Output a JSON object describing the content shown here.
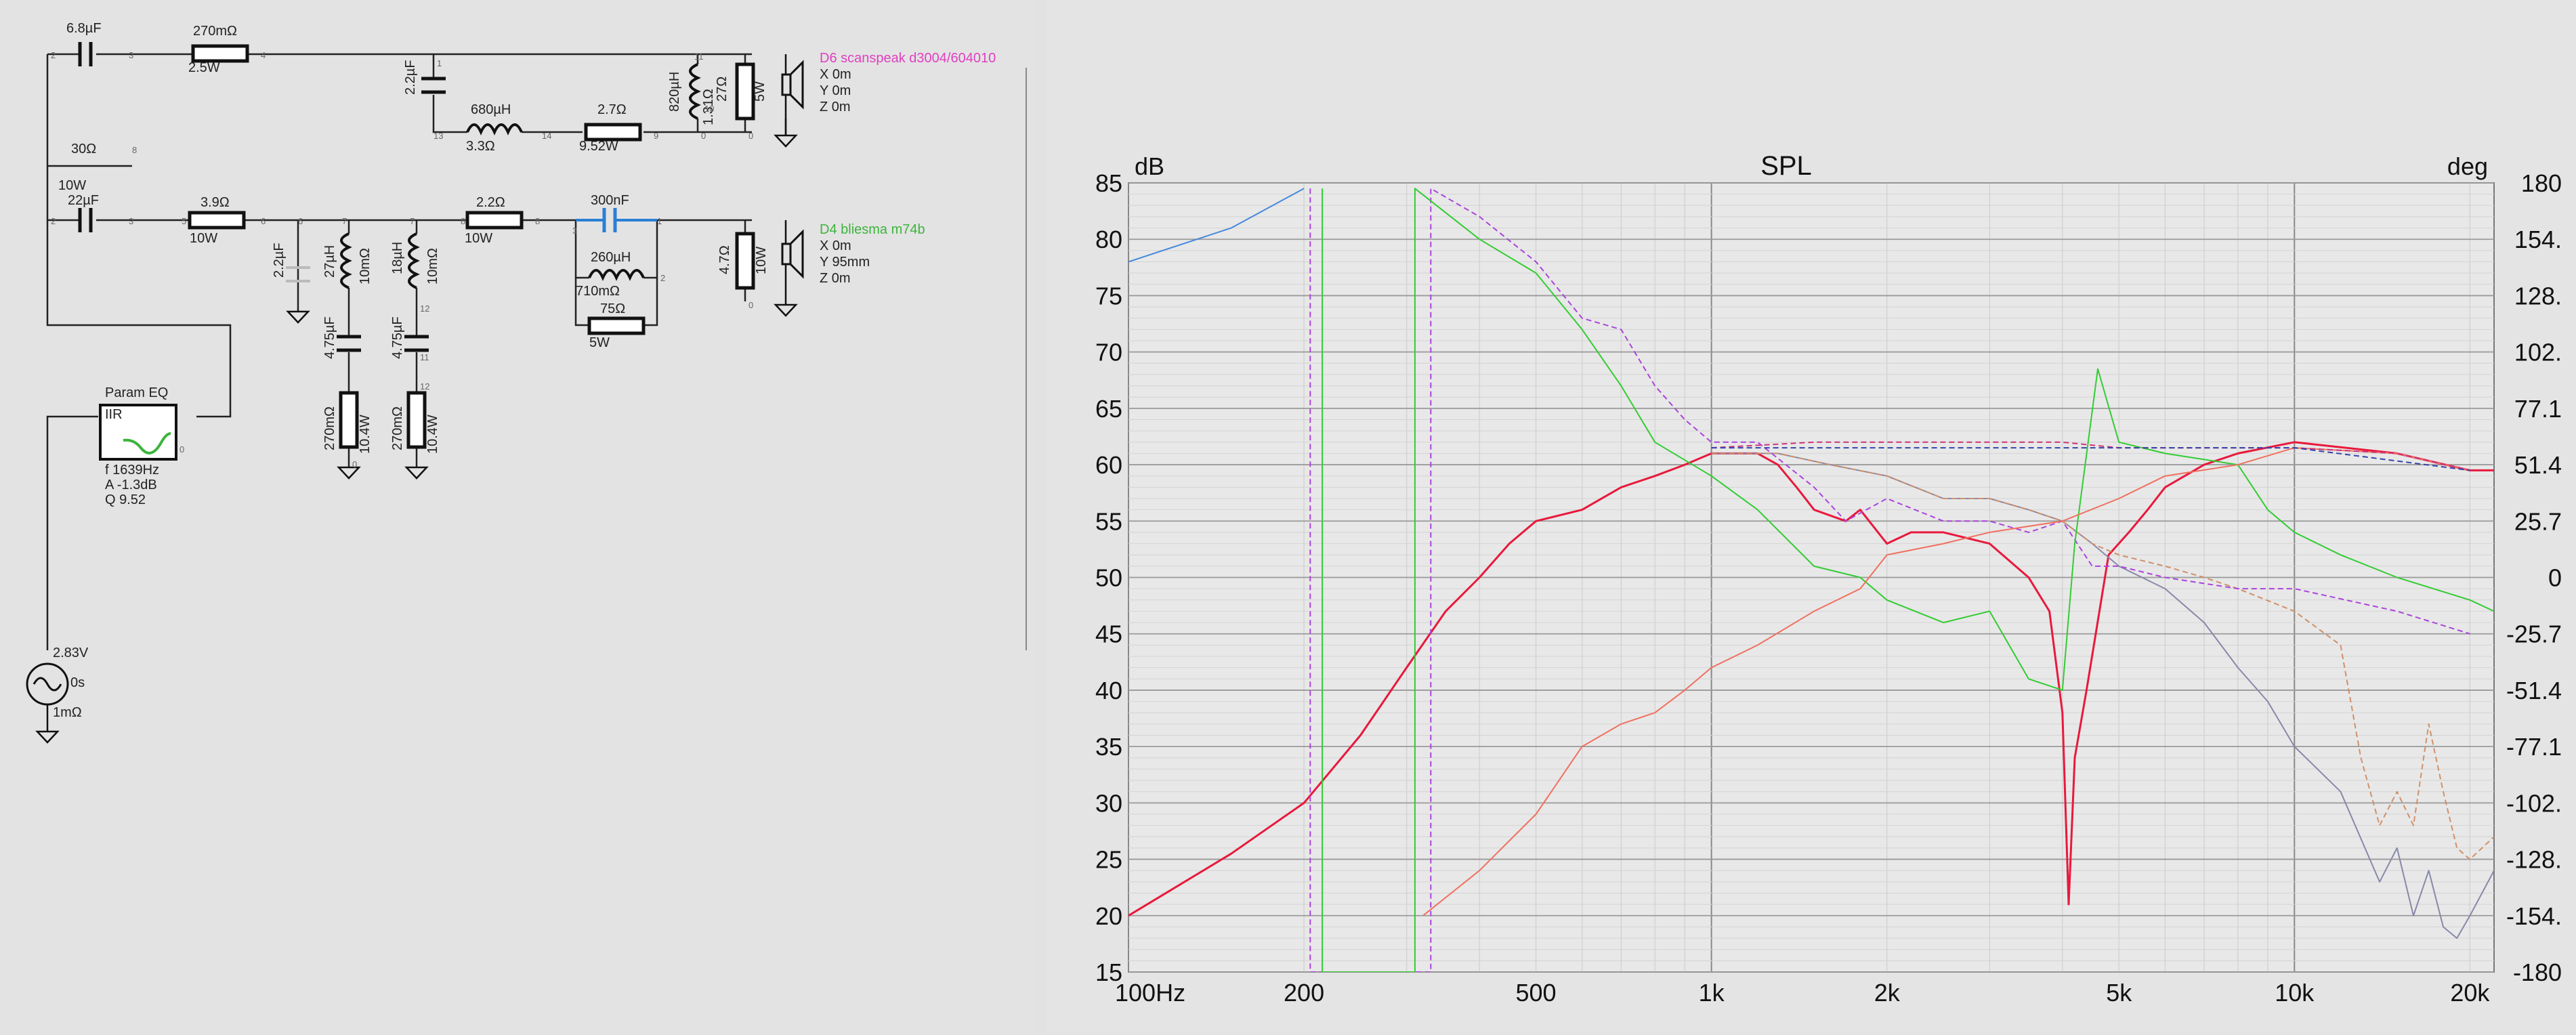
{
  "schematic": {
    "tweeter_label": "D6 scanspeak d3004/604010",
    "tweeter_pos": [
      "X 0m",
      "Y 0m",
      "Z 0m"
    ],
    "woofer_label": "D4 bliesma m74b",
    "woofer_pos": [
      "X 0m",
      "Y 95mm",
      "Z 0m"
    ],
    "colors": {
      "tweeter": "#e040c0",
      "woofer": "#3cb43c",
      "selected": "#2a7fd4"
    },
    "labels": [
      "6.8µF",
      "270mΩ",
      "2.5W",
      "2.2µF",
      "680µH",
      "3.3Ω",
      "2.7Ω",
      "9.52W",
      "820µH",
      "1.31Ω",
      "27Ω",
      "5W",
      "30Ω",
      "10W",
      "22µF",
      "3.9Ω",
      "10W",
      "2.2µF",
      "27µH",
      "10mΩ",
      "18µH",
      "10mΩ",
      "2.2Ω",
      "10W",
      "300nF",
      "260µH",
      "710mΩ",
      "75Ω",
      "5W",
      "4.7Ω",
      "10W",
      "4.75µF",
      "4.75µF",
      "270mΩ",
      "10.4W",
      "270mΩ",
      "10.4W"
    ],
    "peq": {
      "title": "Param EQ",
      "type": "IIR",
      "f": "f   1639Hz",
      "a": "A  -1.3dB",
      "q": "Q  9.52"
    },
    "source": {
      "voltage": "2.83V",
      "delay": "0s",
      "impedance": "1mΩ"
    },
    "pins": [
      "2",
      "3",
      "4",
      "1",
      "13",
      "14",
      "9",
      "0",
      "11",
      "10",
      "0",
      "2",
      "3",
      "5",
      "6",
      "6",
      "7",
      "7",
      "8",
      "8",
      "1",
      "3",
      "2",
      "0",
      "12",
      "11",
      "12",
      "0",
      "8",
      "0"
    ]
  },
  "chart_data": {
    "type": "line",
    "title": "SPL",
    "ylabel_left": "dB",
    "ylabel_right": "deg",
    "x_scale": "log",
    "xlim": [
      100,
      22000
    ],
    "ylim": [
      15,
      85
    ],
    "y2lim": [
      -180,
      180
    ],
    "grid": true,
    "x_ticks": [
      100,
      200,
      500,
      1000,
      2000,
      5000,
      10000,
      20000
    ],
    "x_tick_labels": [
      "100Hz",
      "200",
      "500",
      "1k",
      "2k",
      "5k",
      "10k",
      "20k"
    ],
    "y_ticks": [
      85,
      80,
      75,
      70,
      65,
      60,
      55,
      50,
      45,
      40,
      35,
      30,
      25,
      20,
      15
    ],
    "y2_tick_labels": [
      "180",
      "154.",
      "128.",
      "102.",
      "77.1",
      "51.4",
      "25.7",
      "0",
      "-25.7",
      "-51.4",
      "-77.1",
      "-102.",
      "-128.",
      "-154.",
      "-180"
    ],
    "series": [
      {
        "color": "#e8193c",
        "width": 3,
        "points": [
          [
            100,
            20
          ],
          [
            150,
            25.5
          ],
          [
            200,
            30
          ],
          [
            250,
            36
          ],
          [
            300,
            42
          ],
          [
            350,
            47
          ],
          [
            400,
            50
          ],
          [
            450,
            53
          ],
          [
            500,
            55
          ],
          [
            600,
            56
          ],
          [
            700,
            58
          ],
          [
            800,
            59
          ],
          [
            900,
            60
          ],
          [
            1000,
            61
          ],
          [
            1200,
            61
          ],
          [
            1300,
            60
          ],
          [
            1400,
            58
          ],
          [
            1500,
            56
          ],
          [
            1700,
            55
          ],
          [
            1800,
            56
          ],
          [
            2000,
            53
          ],
          [
            2200,
            54
          ],
          [
            2500,
            54
          ],
          [
            3000,
            53
          ],
          [
            3500,
            50
          ],
          [
            3800,
            47
          ],
          [
            4000,
            38
          ],
          [
            4100,
            21
          ],
          [
            4200,
            34
          ],
          [
            4400,
            40
          ],
          [
            4800,
            52
          ],
          [
            5200,
            54
          ],
          [
            5600,
            56
          ],
          [
            6000,
            58
          ],
          [
            7000,
            60
          ],
          [
            8000,
            61
          ],
          [
            10000,
            62
          ],
          [
            15000,
            61
          ],
          [
            20000,
            59.5
          ],
          [
            22000,
            59.5
          ]
        ]
      },
      {
        "color": "#8888aa",
        "width": 2,
        "points": [
          [
            1000,
            61
          ],
          [
            1300,
            61
          ],
          [
            1600,
            60
          ],
          [
            2000,
            59
          ],
          [
            2500,
            57
          ],
          [
            3000,
            57
          ],
          [
            3500,
            56
          ],
          [
            4000,
            55
          ],
          [
            4500,
            53
          ],
          [
            5000,
            51
          ],
          [
            6000,
            49
          ],
          [
            7000,
            46
          ],
          [
            8000,
            42
          ],
          [
            9000,
            39
          ],
          [
            10000,
            35
          ],
          [
            12000,
            31
          ],
          [
            14000,
            23
          ],
          [
            15000,
            26
          ],
          [
            16000,
            20
          ],
          [
            17000,
            24
          ],
          [
            18000,
            19
          ],
          [
            19000,
            18
          ],
          [
            20000,
            20
          ],
          [
            22000,
            24
          ]
        ]
      },
      {
        "color": "#d0906a",
        "width": 2,
        "dashed": true,
        "points": [
          [
            1000,
            61
          ],
          [
            1300,
            61
          ],
          [
            1600,
            60
          ],
          [
            2000,
            59
          ],
          [
            2500,
            57
          ],
          [
            3000,
            57
          ],
          [
            3500,
            56
          ],
          [
            4000,
            55
          ],
          [
            4500,
            53
          ],
          [
            5000,
            52
          ],
          [
            6000,
            51
          ],
          [
            7000,
            50
          ],
          [
            8000,
            49
          ],
          [
            10000,
            47
          ],
          [
            12000,
            44
          ],
          [
            13000,
            34
          ],
          [
            14000,
            28
          ],
          [
            15000,
            31
          ],
          [
            16000,
            28
          ],
          [
            17000,
            37
          ],
          [
            18000,
            31
          ],
          [
            19000,
            26
          ],
          [
            20000,
            25
          ],
          [
            22000,
            27
          ]
        ]
      },
      {
        "color": "#aa44dd",
        "width": 2,
        "dashed": true,
        "points": [
          [
            205,
            84.5
          ],
          [
            205,
            15
          ],
          [
            330,
            15
          ],
          [
            330,
            84.5
          ],
          [
            400,
            82
          ],
          [
            500,
            78
          ],
          [
            600,
            73
          ],
          [
            700,
            72
          ],
          [
            800,
            67
          ],
          [
            900,
            64
          ],
          [
            1000,
            62
          ],
          [
            1200,
            62
          ],
          [
            1500,
            58
          ],
          [
            1700,
            55
          ],
          [
            2000,
            57
          ],
          [
            2500,
            55
          ],
          [
            3000,
            55
          ],
          [
            3500,
            54
          ],
          [
            4000,
            55
          ],
          [
            4500,
            51
          ],
          [
            5000,
            51
          ],
          [
            6000,
            50
          ],
          [
            8000,
            49
          ],
          [
            10000,
            49
          ],
          [
            15000,
            47
          ],
          [
            20000,
            45
          ]
        ]
      },
      {
        "color": "#33cc33",
        "width": 2,
        "points": [
          [
            215,
            84.5
          ],
          [
            215,
            15
          ],
          [
            310,
            15
          ],
          [
            310,
            84.5
          ],
          [
            400,
            80
          ],
          [
            500,
            77
          ],
          [
            600,
            72
          ],
          [
            700,
            67
          ],
          [
            800,
            62
          ],
          [
            1000,
            59
          ],
          [
            1200,
            56
          ],
          [
            1500,
            51
          ],
          [
            1800,
            50
          ],
          [
            2000,
            48
          ],
          [
            2500,
            46
          ],
          [
            3000,
            47
          ],
          [
            3500,
            41
          ],
          [
            4000,
            40
          ],
          [
            4200,
            53
          ],
          [
            4600,
            68.5
          ],
          [
            5000,
            62
          ],
          [
            6000,
            61
          ],
          [
            8000,
            60
          ],
          [
            9000,
            56
          ],
          [
            10000,
            54
          ],
          [
            12000,
            52
          ],
          [
            15000,
            50
          ],
          [
            20000,
            48
          ],
          [
            22000,
            47
          ]
        ]
      },
      {
        "color": "#f07060",
        "width": 2,
        "points": [
          [
            320,
            20
          ],
          [
            400,
            24
          ],
          [
            500,
            29
          ],
          [
            600,
            35
          ],
          [
            700,
            37
          ],
          [
            800,
            38
          ],
          [
            900,
            40
          ],
          [
            1000,
            42
          ],
          [
            1200,
            44
          ],
          [
            1500,
            47
          ],
          [
            1800,
            49
          ],
          [
            2000,
            52
          ],
          [
            2500,
            53
          ],
          [
            3000,
            54
          ],
          [
            4000,
            55
          ],
          [
            5000,
            57
          ],
          [
            6000,
            59
          ],
          [
            8000,
            60
          ],
          [
            10000,
            61.5
          ],
          [
            15000,
            61
          ],
          [
            20000,
            59.5
          ]
        ]
      },
      {
        "color": "#4488dd",
        "width": 2,
        "points": [
          [
            100,
            78
          ],
          [
            150,
            81
          ],
          [
            200,
            84.5
          ]
        ]
      },
      {
        "color": "#cc3377",
        "width": 2,
        "dashed": true,
        "points": [
          [
            1000,
            61.5
          ],
          [
            1500,
            62
          ],
          [
            2000,
            62
          ],
          [
            3000,
            62
          ],
          [
            4000,
            62
          ],
          [
            5000,
            61.5
          ],
          [
            6000,
            61.5
          ],
          [
            8000,
            61.5
          ],
          [
            10000,
            61.5
          ],
          [
            15000,
            61
          ],
          [
            20000,
            59.5
          ]
        ]
      },
      {
        "color": "#3344aa",
        "width": 2,
        "dashed": true,
        "points": [
          [
            1000,
            61.5
          ],
          [
            2000,
            61.5
          ],
          [
            4000,
            61.5
          ],
          [
            6000,
            61.5
          ],
          [
            10000,
            61.5
          ],
          [
            20000,
            59.5
          ]
        ]
      }
    ]
  }
}
